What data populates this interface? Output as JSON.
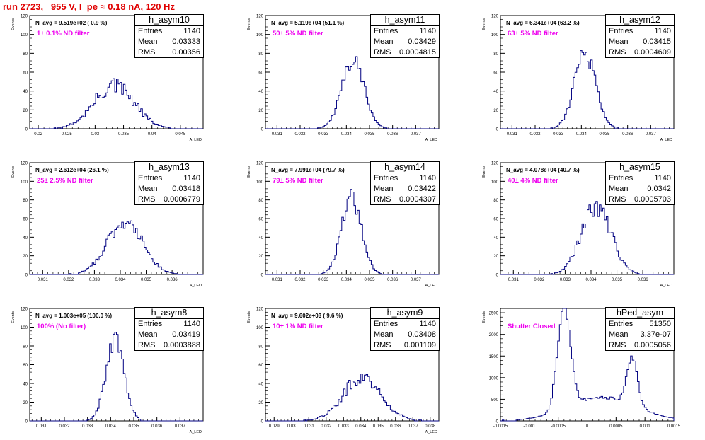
{
  "page_title": "run 2723,   955 V, I_pe ≈ 0.18 nA, 120 Hz",
  "colors": {
    "title": "#e00000",
    "hist_line": "#000080",
    "annotation": "#ee00ee",
    "axis": "#000000"
  },
  "chart_data": [
    {
      "type": "histogram",
      "name": "h_asym10",
      "stats": {
        "entries_label": "Entries",
        "entries": "1140",
        "mean_label": "Mean",
        "mean": "0.03333",
        "rms_label": "RMS",
        "rms": "0.00356"
      },
      "n_avg_text": "N_avg = 9.519e+02 ( 0.9 %)",
      "filter_text": "1± 0.1% ND filter",
      "ylabel": "Events",
      "xlabel": "A_LED",
      "xlim": [
        0.0185,
        0.049
      ],
      "ylim": [
        0,
        120
      ],
      "xticks": [
        "0.02",
        "0.025",
        "0.03",
        "0.035",
        "0.04",
        "0.045"
      ],
      "yticks": [
        "0",
        "20",
        "40",
        "60",
        "80",
        "100",
        "120"
      ],
      "mean": 0.03333,
      "sigma": 0.00356,
      "peak": 45,
      "noise": 0.22
    },
    {
      "type": "histogram",
      "name": "h_asym11",
      "stats": {
        "entries_label": "Entries",
        "entries": "1140",
        "mean_label": "Mean",
        "mean": "0.03429",
        "rms_label": "RMS",
        "rms": "0.0004815"
      },
      "n_avg_text": "N_avg = 5.119e+04 (51.1 %)",
      "filter_text": "50± 5% ND filter",
      "ylabel": "Events",
      "xlabel": "A_LED",
      "xlim": [
        0.0305,
        0.038
      ],
      "ylim": [
        0,
        120
      ],
      "xticks": [
        "0.031",
        "0.032",
        "0.033",
        "0.034",
        "0.035",
        "0.036",
        "0.037"
      ],
      "yticks": [
        "0",
        "20",
        "40",
        "60",
        "80",
        "100",
        "120"
      ],
      "mean": 0.03429,
      "sigma": 0.0004815,
      "peak": 73,
      "noise": 0.12
    },
    {
      "type": "histogram",
      "name": "h_asym12",
      "stats": {
        "entries_label": "Entries",
        "entries": "1140",
        "mean_label": "Mean",
        "mean": "0.03415",
        "rms_label": "RMS",
        "rms": "0.0004609"
      },
      "n_avg_text": "N_avg = 6.341e+04 (63.2 %)",
      "filter_text": "63± 5% ND filter",
      "ylabel": "Events",
      "xlabel": "A_LED",
      "xlim": [
        0.0305,
        0.038
      ],
      "ylim": [
        0,
        120
      ],
      "xticks": [
        "0.031",
        "0.032",
        "0.033",
        "0.034",
        "0.035",
        "0.036",
        "0.037"
      ],
      "yticks": [
        "0",
        "20",
        "40",
        "60",
        "80",
        "100",
        "120"
      ],
      "mean": 0.03415,
      "sigma": 0.0004609,
      "peak": 79,
      "noise": 0.15
    },
    {
      "type": "histogram",
      "name": "h_asym13",
      "stats": {
        "entries_label": "Entries",
        "entries": "1140",
        "mean_label": "Mean",
        "mean": "0.03418",
        "rms_label": "RMS",
        "rms": "0.0006779"
      },
      "n_avg_text": "N_avg = 2.612e+04 (26.1 %)",
      "filter_text": "25± 2.5% ND filter",
      "ylabel": "Events",
      "xlabel": "A_LED",
      "xlim": [
        0.0305,
        0.0372
      ],
      "ylim": [
        0,
        120
      ],
      "xticks": [
        "0.031",
        "0.032",
        "0.033",
        "0.034",
        "0.035",
        "0.036"
      ],
      "yticks": [
        "0",
        "20",
        "40",
        "60",
        "80",
        "100",
        "120"
      ],
      "mean": 0.03418,
      "sigma": 0.0006779,
      "peak": 57,
      "noise": 0.15
    },
    {
      "type": "histogram",
      "name": "h_asym14",
      "stats": {
        "entries_label": "Entries",
        "entries": "1140",
        "mean_label": "Mean",
        "mean": "0.03422",
        "rms_label": "RMS",
        "rms": "0.0004307"
      },
      "n_avg_text": "N_avg = 7.991e+04 (79.7 %)",
      "filter_text": "79± 5% ND filter",
      "ylabel": "Events",
      "xlabel": "A_LED",
      "xlim": [
        0.0305,
        0.038
      ],
      "ylim": [
        0,
        120
      ],
      "xticks": [
        "0.031",
        "0.032",
        "0.033",
        "0.034",
        "0.035",
        "0.036",
        "0.037"
      ],
      "yticks": [
        "0",
        "20",
        "40",
        "60",
        "80",
        "100",
        "120"
      ],
      "mean": 0.03422,
      "sigma": 0.0004307,
      "peak": 82,
      "noise": 0.12
    },
    {
      "type": "histogram",
      "name": "h_asym15",
      "stats": {
        "entries_label": "Entries",
        "entries": "1140",
        "mean_label": "Mean",
        "mean": "0.0342",
        "rms_label": "RMS",
        "rms": "0.0005703"
      },
      "n_avg_text": "N_avg = 4.078e+04 (40.7 %)",
      "filter_text": "40± 4% ND filter",
      "ylabel": "Events",
      "xlabel": "A_LED",
      "xlim": [
        0.0305,
        0.0372
      ],
      "ylim": [
        0,
        120
      ],
      "xticks": [
        "0.031",
        "0.032",
        "0.033",
        "0.034",
        "0.035",
        "0.036"
      ],
      "yticks": [
        "0",
        "20",
        "40",
        "60",
        "80",
        "100",
        "120"
      ],
      "mean": 0.0342,
      "sigma": 0.0005703,
      "peak": 73,
      "noise": 0.16
    },
    {
      "type": "histogram",
      "name": "h_asym8",
      "stats": {
        "entries_label": "Entries",
        "entries": "1140",
        "mean_label": "Mean",
        "mean": "0.03419",
        "rms_label": "RMS",
        "rms": "0.0003888"
      },
      "n_avg_text": "N_avg = 1.003e+05 (100.0 %)",
      "filter_text": "100% (No filter)",
      "ylabel": "Events",
      "xlabel": "A_LED",
      "xlim": [
        0.0305,
        0.038
      ],
      "ylim": [
        0,
        120
      ],
      "xticks": [
        "0.031",
        "0.032",
        "0.033",
        "0.034",
        "0.035",
        "0.036",
        "0.037"
      ],
      "yticks": [
        "0",
        "20",
        "40",
        "60",
        "80",
        "100",
        "120"
      ],
      "mean": 0.03419,
      "sigma": 0.0003888,
      "peak": 87,
      "noise": 0.12
    },
    {
      "type": "histogram",
      "name": "h_asym9",
      "stats": {
        "entries_label": "Entries",
        "entries": "1140",
        "mean_label": "Mean",
        "mean": "0.03408",
        "rms_label": "RMS",
        "rms": "0.001109"
      },
      "n_avg_text": "N_avg = 9.602e+03 ( 9.6 %)",
      "filter_text": "10± 1% ND filter",
      "ylabel": "Events",
      "xlabel": "A_LED",
      "xlim": [
        0.0285,
        0.0385
      ],
      "ylim": [
        0,
        120
      ],
      "xticks": [
        "0.029",
        "0.03",
        "0.031",
        "0.032",
        "0.033",
        "0.034",
        "0.035",
        "0.036",
        "0.037",
        "0.038"
      ],
      "yticks": [
        "0",
        "20",
        "40",
        "60",
        "80",
        "100",
        "120"
      ],
      "mean": 0.03408,
      "sigma": 0.001109,
      "peak": 46,
      "noise": 0.2
    },
    {
      "type": "histogram",
      "name": "hPed_asym",
      "stats": {
        "entries_label": "Entries",
        "entries": "51350",
        "mean_label": "Mean",
        "mean": "3.37e-07",
        "rms_label": "RMS",
        "rms": "0.0005056"
      },
      "n_avg_text": "",
      "filter_text": "Shutter Closed",
      "ylabel": "Events",
      "xlabel": "",
      "xlim": [
        -0.0015,
        0.0015
      ],
      "ylim": [
        0,
        2600
      ],
      "xticks": [
        "-0.0015",
        "-0.001",
        "-0.0005",
        "0",
        "0.0005",
        "0.001",
        "0.0015"
      ],
      "yticks": [
        "0",
        "500",
        "1000",
        "1500",
        "2000",
        "2500"
      ],
      "components": [
        {
          "mean": -0.0004,
          "sigma": 0.00011,
          "amp": 2450
        },
        {
          "mean": 0.00026,
          "sigma": 0.0006,
          "amp": 540
        },
        {
          "mean": 0.00078,
          "sigma": 9e-05,
          "amp": 1100
        }
      ],
      "noise": 0.06
    }
  ]
}
